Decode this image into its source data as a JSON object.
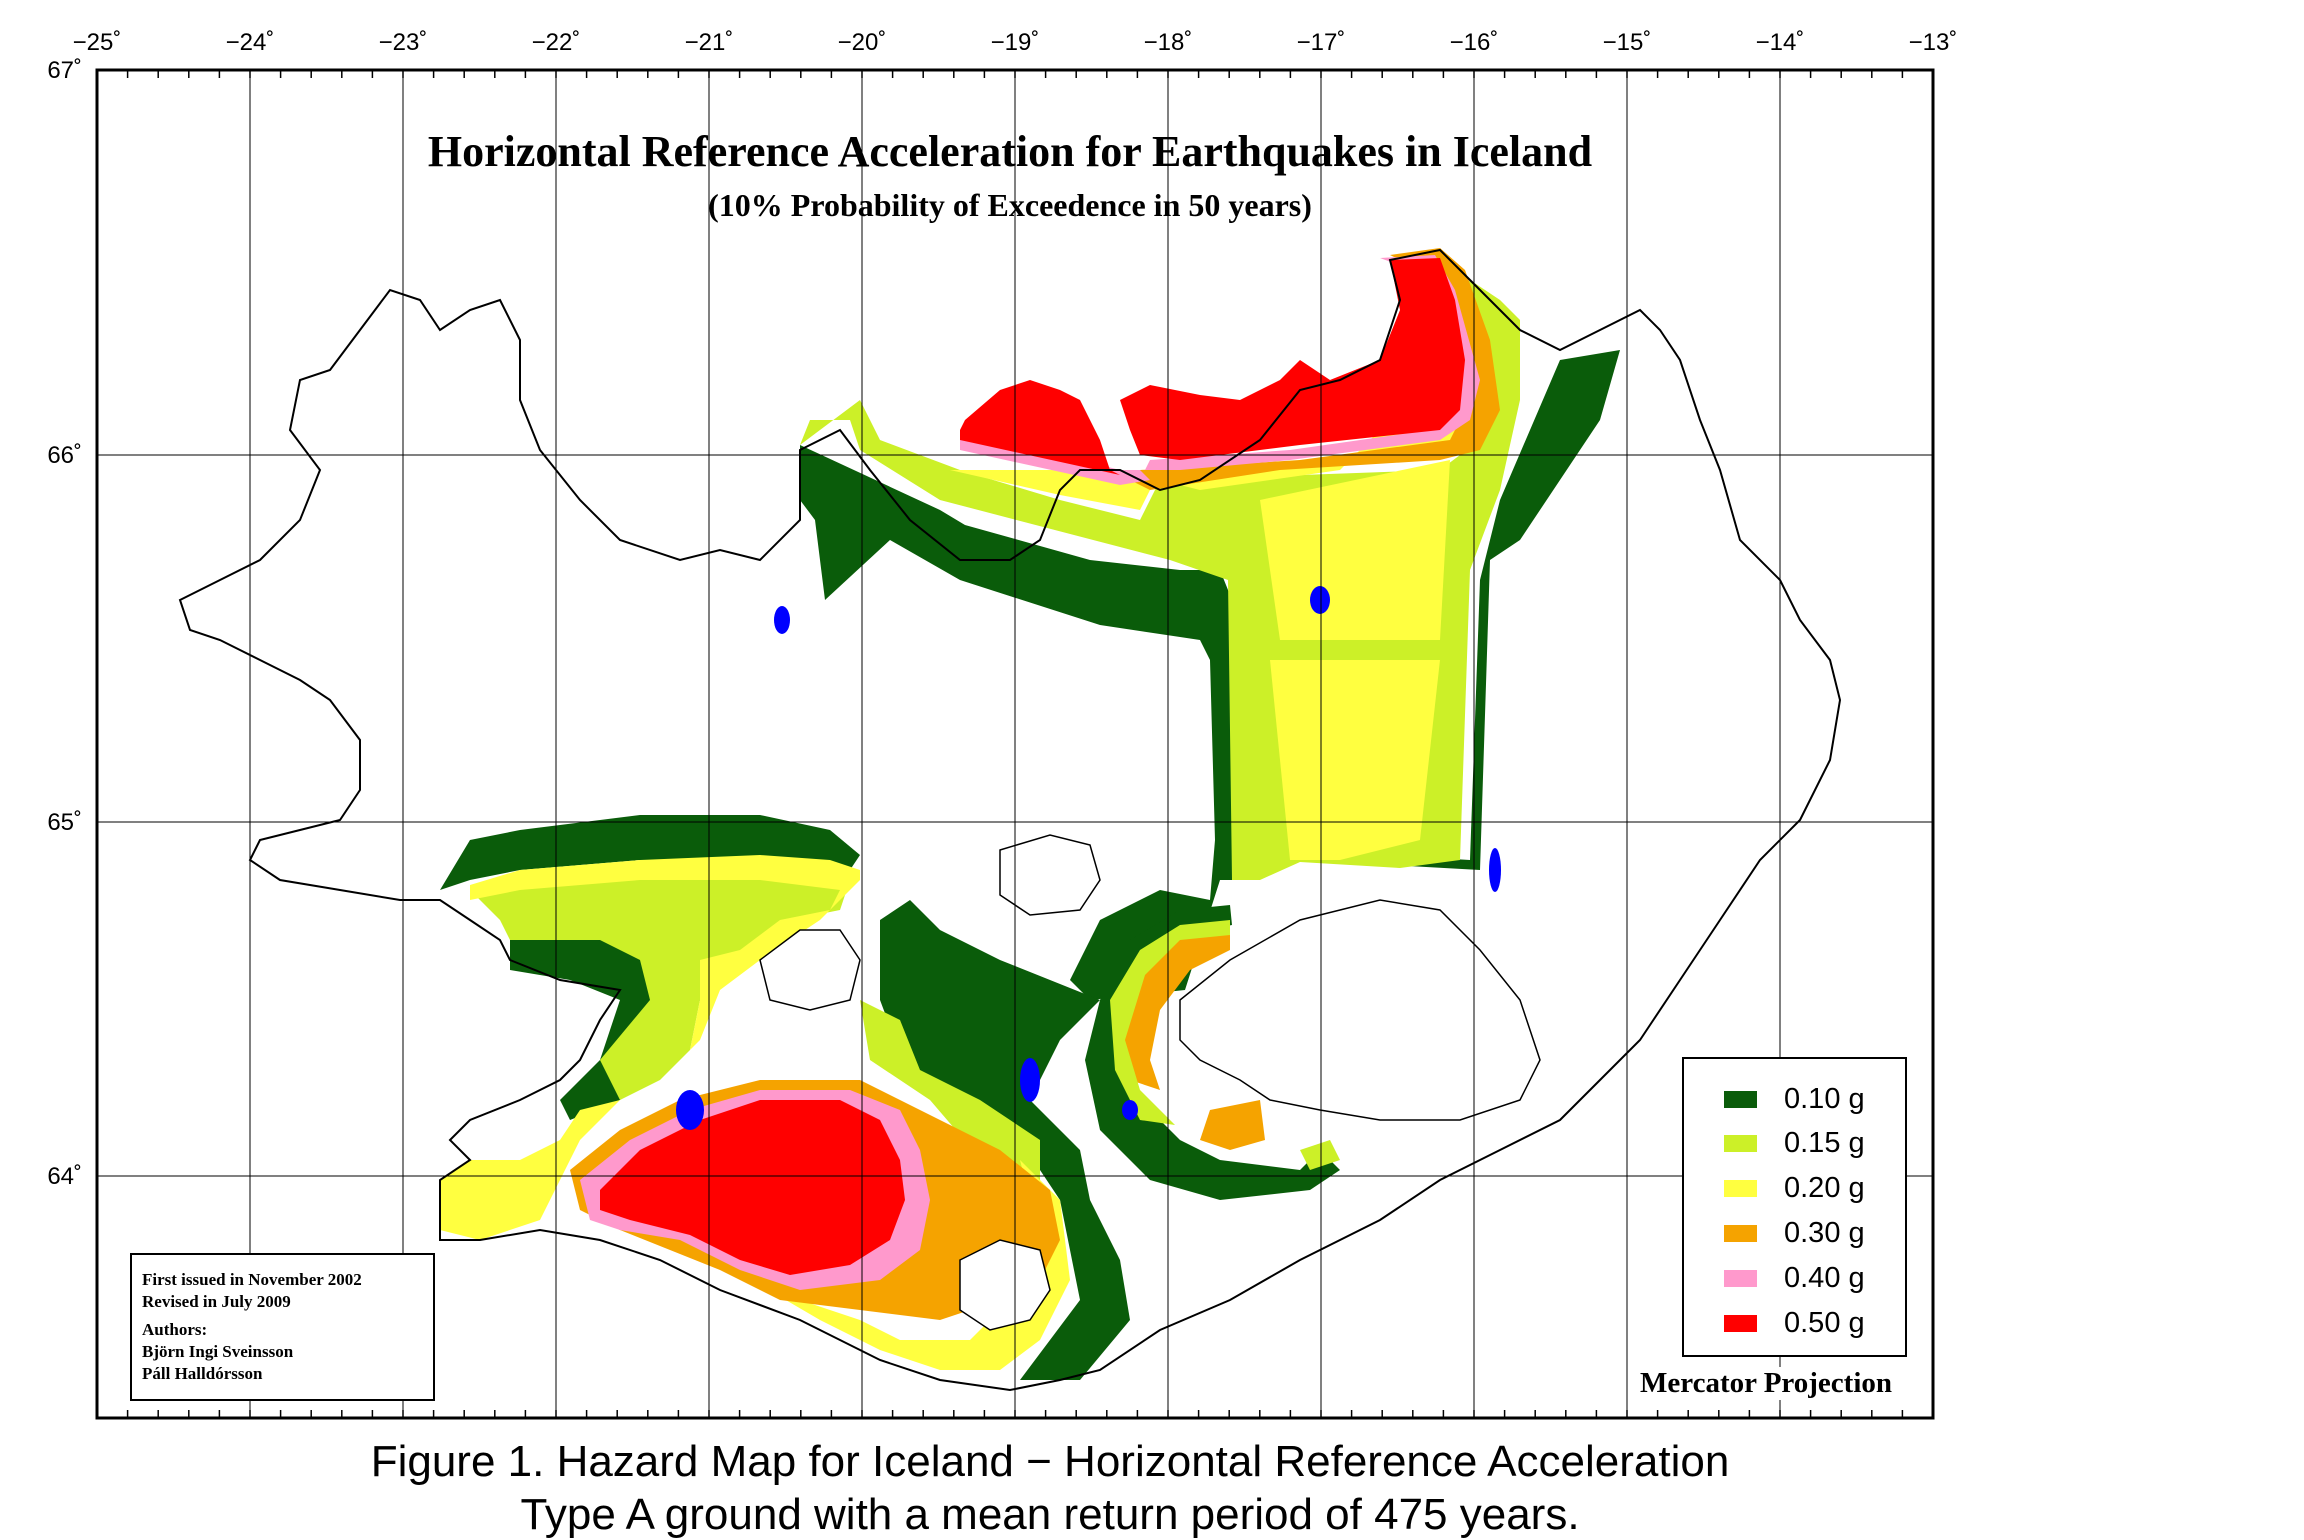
{
  "map": {
    "title": "Horizontal Reference Acceleration for Earthquakes in Iceland",
    "subtitle": "(10% Probability of Exceedence in 50 years)",
    "longitude_labels": [
      "−25˚",
      "−24˚",
      "−23˚",
      "−22˚",
      "−21˚",
      "−20˚",
      "−19˚",
      "−18˚",
      "−17˚",
      "−16˚",
      "−15˚",
      "−14˚",
      "−13˚"
    ],
    "latitude_labels": [
      "67˚",
      "66˚",
      "65˚",
      "64˚"
    ],
    "projection": "Mercator Projection"
  },
  "legend": {
    "items": [
      {
        "label": "0.10 g",
        "color": "#0a5c0a"
      },
      {
        "label": "0.15 g",
        "color": "#ccf028"
      },
      {
        "label": "0.20 g",
        "color": "#ffff40"
      },
      {
        "label": "0.30 g",
        "color": "#f5a300"
      },
      {
        "label": "0.40 g",
        "color": "#ff99cc"
      },
      {
        "label": "0.50 g",
        "color": "#ff0000"
      }
    ]
  },
  "info": {
    "issued": "First issued in November 2002",
    "revised": "Revised in July 2009",
    "authors_label": "Authors:",
    "author_1": "Björn Ingi Sveinsson",
    "author_2": "Páll Halldórsson"
  },
  "caption": {
    "line_1": "Figure 1.  Hazard Map for Iceland − Horizontal Reference Acceleration",
    "line_2": "Type A ground with a mean return period of 475 years."
  },
  "colors": {
    "land_outline": "#000000",
    "lakes": "#0000ff",
    "background": "#ffffff"
  }
}
